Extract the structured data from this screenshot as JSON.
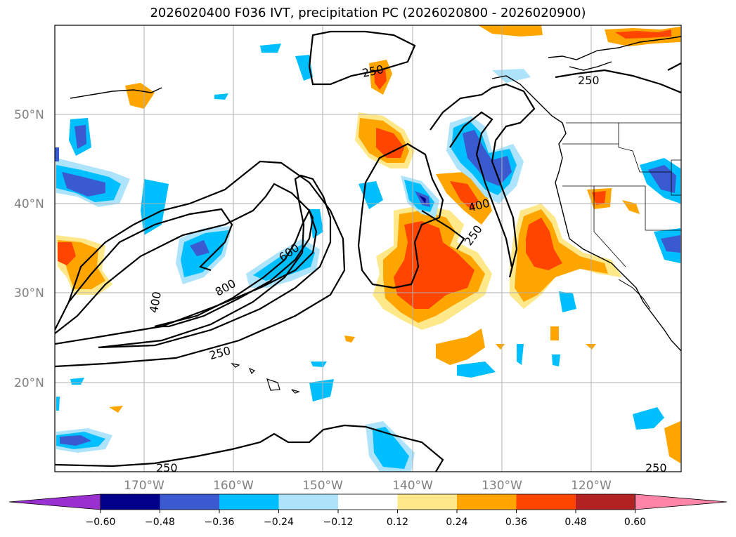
{
  "title": "2026020400 F036 IVT, precipitation PC (2026020800 - 2026020900)",
  "lat_labels": [
    "50°N",
    "40°N",
    "30°N",
    "20°N"
  ],
  "lon_labels": [
    "170°W",
    "160°W",
    "150°W",
    "140°W",
    "130°W",
    "120°W"
  ],
  "ivt_contour_labels": [
    "250",
    "250",
    "400",
    "250",
    "600",
    "800",
    "400",
    "250",
    "250",
    "250"
  ],
  "colorbar": {
    "ticks": [
      "−0.60",
      "−0.48",
      "−0.36",
      "−0.24",
      "−0.12",
      "0.12",
      "0.24",
      "0.36",
      "0.48",
      "0.60"
    ],
    "colors": [
      "#9b30d0",
      "#00008b",
      "#3a5bd0",
      "#00bfff",
      "#aee4fb",
      "#ffffff",
      "#ffe88a",
      "#ffa500",
      "#ff4500",
      "#b22222",
      "#ff85a8"
    ]
  },
  "colors": {
    "pos_low": "#ffe88a",
    "pos_mid": "#ffa500",
    "pos_high": "#ff4500",
    "neg_low": "#aee4fb",
    "neg_mid": "#00bfff",
    "neg_high": "#3a5bd0",
    "neg_max": "#00008b"
  }
}
